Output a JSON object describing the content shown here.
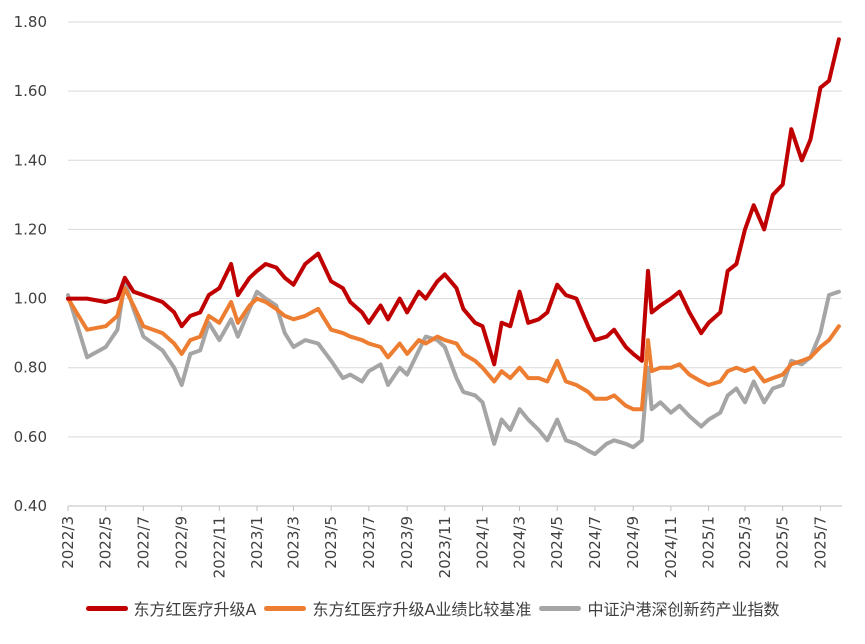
{
  "chart_data": {
    "type": "line",
    "title": "",
    "xlabel": "",
    "ylabel": "",
    "ylim": [
      0.4,
      1.8
    ],
    "yticks": [
      "0.40",
      "0.60",
      "0.80",
      "1.00",
      "1.20",
      "1.40",
      "1.60",
      "1.80"
    ],
    "yticks_values": [
      0.4,
      0.6,
      0.8,
      1.0,
      1.2,
      1.4,
      1.6,
      1.8
    ],
    "xticks": [
      "2022/3",
      "2022/5",
      "2022/7",
      "2022/9",
      "2022/11",
      "2023/1",
      "2023/3",
      "2023/5",
      "2023/7",
      "2023/9",
      "2023/11",
      "2024/1",
      "2024/3",
      "2024/5",
      "2024/7",
      "2024/9",
      "2024/11",
      "2025/1",
      "2025/3",
      "2025/5",
      "2025/7"
    ],
    "grid": "horizontal",
    "legend_position": "bottom",
    "series": [
      {
        "name": "东方红医疗升级A",
        "color": "#c00000",
        "x": [
          "2022/3/1",
          "2022/4/1",
          "2022/5/1",
          "2022/5/20",
          "2022/6/1",
          "2022/6/15",
          "2022/7/1",
          "2022/8/1",
          "2022/8/20",
          "2022/9/1",
          "2022/9/15",
          "2022/10/1",
          "2022/10/15",
          "2022/11/1",
          "2022/11/20",
          "2022/12/1",
          "2022/12/20",
          "2023/1/1",
          "2023/1/15",
          "2023/2/1",
          "2023/2/15",
          "2023/3/1",
          "2023/3/20",
          "2023/4/10",
          "2023/5/1",
          "2023/5/20",
          "2023/6/1",
          "2023/6/20",
          "2023/7/1",
          "2023/7/20",
          "2023/8/1",
          "2023/8/20",
          "2023/9/1",
          "2023/9/20",
          "2023/10/1",
          "2023/10/20",
          "2023/11/1",
          "2023/11/20",
          "2023/12/1",
          "2023/12/20",
          "2024/1/1",
          "2024/1/20",
          "2024/2/1",
          "2024/2/15",
          "2024/3/1",
          "2024/3/15",
          "2024/4/1",
          "2024/4/15",
          "2024/5/1",
          "2024/5/15",
          "2024/6/1",
          "2024/6/20",
          "2024/7/1",
          "2024/7/20",
          "2024/8/1",
          "2024/8/20",
          "2024/9/1",
          "2024/9/15",
          "2024/9/25",
          "2024/10/1",
          "2024/10/15",
          "2024/11/1",
          "2024/11/15",
          "2024/12/1",
          "2024/12/20",
          "2025/1/1",
          "2025/1/20",
          "2025/2/1",
          "2025/2/15",
          "2025/3/1",
          "2025/3/15",
          "2025/4/1",
          "2025/4/15",
          "2025/5/1",
          "2025/5/15",
          "2025/6/1",
          "2025/6/15",
          "2025/7/1",
          "2025/7/15",
          "2025/7/31"
        ],
        "values": [
          1.0,
          1.0,
          0.99,
          1.0,
          1.06,
          1.02,
          1.01,
          0.99,
          0.96,
          0.92,
          0.95,
          0.96,
          1.01,
          1.03,
          1.1,
          1.01,
          1.06,
          1.08,
          1.1,
          1.09,
          1.06,
          1.04,
          1.1,
          1.13,
          1.05,
          1.03,
          0.99,
          0.96,
          0.93,
          0.98,
          0.94,
          1.0,
          0.96,
          1.02,
          1.0,
          1.05,
          1.07,
          1.03,
          0.97,
          0.93,
          0.92,
          0.81,
          0.93,
          0.92,
          1.02,
          0.93,
          0.94,
          0.96,
          1.04,
          1.01,
          1.0,
          0.92,
          0.88,
          0.89,
          0.91,
          0.86,
          0.84,
          0.82,
          1.08,
          0.96,
          0.98,
          1.0,
          1.02,
          0.96,
          0.9,
          0.93,
          0.96,
          1.08,
          1.1,
          1.2,
          1.27,
          1.2,
          1.3,
          1.33,
          1.49,
          1.4,
          1.46,
          1.61,
          1.63,
          1.75
        ]
      },
      {
        "name": "东方红医疗升级A业绩比较基准",
        "color": "#ed7d31",
        "x": [
          "2022/3/1",
          "2022/4/1",
          "2022/5/1",
          "2022/5/20",
          "2022/6/1",
          "2022/6/15",
          "2022/7/1",
          "2022/8/1",
          "2022/8/20",
          "2022/9/1",
          "2022/9/15",
          "2022/10/1",
          "2022/10/15",
          "2022/11/1",
          "2022/11/20",
          "2022/12/1",
          "2022/12/20",
          "2023/1/1",
          "2023/1/15",
          "2023/2/1",
          "2023/2/15",
          "2023/3/1",
          "2023/3/20",
          "2023/4/10",
          "2023/5/1",
          "2023/5/20",
          "2023/6/1",
          "2023/6/20",
          "2023/7/1",
          "2023/7/20",
          "2023/8/1",
          "2023/8/20",
          "2023/9/1",
          "2023/9/20",
          "2023/10/1",
          "2023/10/20",
          "2023/11/1",
          "2023/11/20",
          "2023/12/1",
          "2023/12/20",
          "2024/1/1",
          "2024/1/20",
          "2024/2/1",
          "2024/2/15",
          "2024/3/1",
          "2024/3/15",
          "2024/4/1",
          "2024/4/15",
          "2024/5/1",
          "2024/5/15",
          "2024/6/1",
          "2024/6/20",
          "2024/7/1",
          "2024/7/20",
          "2024/8/1",
          "2024/8/20",
          "2024/9/1",
          "2024/9/15",
          "2024/9/25",
          "2024/10/1",
          "2024/10/15",
          "2024/11/1",
          "2024/11/15",
          "2024/12/1",
          "2024/12/20",
          "2025/1/1",
          "2025/1/20",
          "2025/2/1",
          "2025/2/15",
          "2025/3/1",
          "2025/3/15",
          "2025/4/1",
          "2025/4/15",
          "2025/5/1",
          "2025/5/15",
          "2025/6/1",
          "2025/6/15",
          "2025/7/1",
          "2025/7/15",
          "2025/7/31"
        ],
        "values": [
          1.0,
          0.91,
          0.92,
          0.95,
          1.03,
          0.98,
          0.92,
          0.9,
          0.87,
          0.84,
          0.88,
          0.89,
          0.95,
          0.93,
          0.99,
          0.93,
          0.98,
          1.0,
          0.99,
          0.97,
          0.95,
          0.94,
          0.95,
          0.97,
          0.91,
          0.9,
          0.89,
          0.88,
          0.87,
          0.86,
          0.83,
          0.87,
          0.84,
          0.88,
          0.87,
          0.89,
          0.88,
          0.87,
          0.84,
          0.82,
          0.8,
          0.76,
          0.79,
          0.77,
          0.8,
          0.77,
          0.77,
          0.76,
          0.82,
          0.76,
          0.75,
          0.73,
          0.71,
          0.71,
          0.72,
          0.69,
          0.68,
          0.68,
          0.88,
          0.79,
          0.8,
          0.8,
          0.81,
          0.78,
          0.76,
          0.75,
          0.76,
          0.79,
          0.8,
          0.79,
          0.8,
          0.76,
          0.77,
          0.78,
          0.81,
          0.82,
          0.83,
          0.86,
          0.88,
          0.92
        ]
      },
      {
        "name": "中证沪港深创新药产业指数",
        "color": "#a5a5a5",
        "x": [
          "2022/3/1",
          "2022/4/1",
          "2022/5/1",
          "2022/5/20",
          "2022/6/1",
          "2022/6/15",
          "2022/7/1",
          "2022/8/1",
          "2022/8/20",
          "2022/9/1",
          "2022/9/15",
          "2022/10/1",
          "2022/10/15",
          "2022/11/1",
          "2022/11/20",
          "2022/12/1",
          "2022/12/20",
          "2023/1/1",
          "2023/1/15",
          "2023/2/1",
          "2023/2/15",
          "2023/3/1",
          "2023/3/20",
          "2023/4/10",
          "2023/5/1",
          "2023/5/20",
          "2023/6/1",
          "2023/6/20",
          "2023/7/1",
          "2023/7/20",
          "2023/8/1",
          "2023/8/20",
          "2023/9/1",
          "2023/9/20",
          "2023/10/1",
          "2023/10/20",
          "2023/11/1",
          "2023/11/20",
          "2023/12/1",
          "2023/12/20",
          "2024/1/1",
          "2024/1/20",
          "2024/2/1",
          "2024/2/15",
          "2024/3/1",
          "2024/3/15",
          "2024/4/1",
          "2024/4/15",
          "2024/5/1",
          "2024/5/15",
          "2024/6/1",
          "2024/6/20",
          "2024/7/1",
          "2024/7/20",
          "2024/8/1",
          "2024/8/20",
          "2024/9/1",
          "2024/9/15",
          "2024/9/25",
          "2024/10/1",
          "2024/10/15",
          "2024/11/1",
          "2024/11/15",
          "2024/12/1",
          "2024/12/20",
          "2025/1/1",
          "2025/1/20",
          "2025/2/1",
          "2025/2/15",
          "2025/3/1",
          "2025/3/15",
          "2025/4/1",
          "2025/4/15",
          "2025/5/1",
          "2025/5/15",
          "2025/6/1",
          "2025/6/15",
          "2025/7/1",
          "2025/7/15",
          "2025/7/31"
        ],
        "values": [
          1.01,
          0.83,
          0.86,
          0.91,
          1.05,
          0.97,
          0.89,
          0.85,
          0.8,
          0.75,
          0.84,
          0.85,
          0.93,
          0.88,
          0.94,
          0.89,
          0.97,
          1.02,
          1.0,
          0.98,
          0.9,
          0.86,
          0.88,
          0.87,
          0.82,
          0.77,
          0.78,
          0.76,
          0.79,
          0.81,
          0.75,
          0.8,
          0.78,
          0.85,
          0.89,
          0.88,
          0.86,
          0.77,
          0.73,
          0.72,
          0.7,
          0.58,
          0.65,
          0.62,
          0.68,
          0.65,
          0.62,
          0.59,
          0.65,
          0.59,
          0.58,
          0.56,
          0.55,
          0.58,
          0.59,
          0.58,
          0.57,
          0.59,
          0.8,
          0.68,
          0.7,
          0.67,
          0.69,
          0.66,
          0.63,
          0.65,
          0.67,
          0.72,
          0.74,
          0.7,
          0.76,
          0.7,
          0.74,
          0.75,
          0.82,
          0.81,
          0.83,
          0.9,
          1.01,
          1.02
        ]
      }
    ]
  }
}
